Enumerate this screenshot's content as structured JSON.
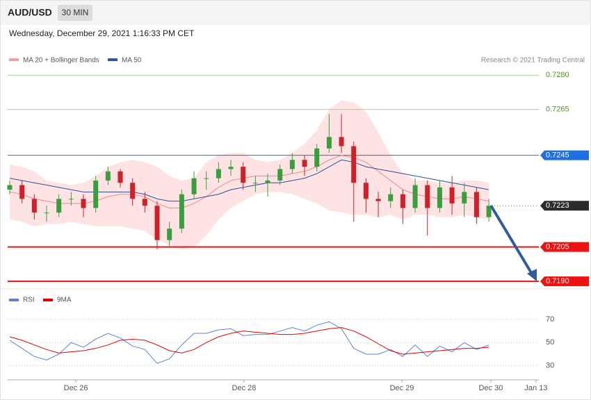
{
  "header": {
    "symbol": "AUD/USD",
    "interval": "30 MIN",
    "timestamp": "Wednesday, December 29, 2021 1:16:33 PM CET",
    "credit": "Research © 2021 Trading Central"
  },
  "chart_data": [
    {
      "type": "candlestick",
      "up_color": "#3a9e3f",
      "down_color": "#d0202a",
      "ohlc": [
        [
          0.723,
          0.7234,
          0.7228,
          0.7232
        ],
        [
          0.7232,
          0.7234,
          0.7224,
          0.7226
        ],
        [
          0.7226,
          0.7228,
          0.7217,
          0.722
        ],
        [
          0.722,
          0.7223,
          0.7216,
          0.722
        ],
        [
          0.722,
          0.7228,
          0.7218,
          0.7226
        ],
        [
          0.7226,
          0.7229,
          0.7223,
          0.7226
        ],
        [
          0.7226,
          0.7228,
          0.7218,
          0.7222
        ],
        [
          0.7222,
          0.7236,
          0.722,
          0.7234
        ],
        [
          0.7234,
          0.724,
          0.7232,
          0.7238
        ],
        [
          0.7238,
          0.7239,
          0.7231,
          0.7233
        ],
        [
          0.7233,
          0.7235,
          0.7223,
          0.7226
        ],
        [
          0.7226,
          0.7229,
          0.722,
          0.7223
        ],
        [
          0.7223,
          0.7225,
          0.7204,
          0.7208
        ],
        [
          0.7208,
          0.7216,
          0.7205,
          0.7213
        ],
        [
          0.7213,
          0.723,
          0.7211,
          0.7228
        ],
        [
          0.7228,
          0.7238,
          0.7226,
          0.7235
        ],
        [
          0.7235,
          0.7238,
          0.723,
          0.7235
        ],
        [
          0.7235,
          0.7242,
          0.7233,
          0.7239
        ],
        [
          0.7239,
          0.7243,
          0.7236,
          0.724
        ],
        [
          0.724,
          0.7242,
          0.723,
          0.7233
        ],
        [
          0.7233,
          0.7236,
          0.7229,
          0.7233
        ],
        [
          0.7233,
          0.7237,
          0.7227,
          0.7234
        ],
        [
          0.7234,
          0.7241,
          0.7232,
          0.7239
        ],
        [
          0.7239,
          0.7246,
          0.7237,
          0.7243
        ],
        [
          0.7243,
          0.7245,
          0.7236,
          0.724
        ],
        [
          0.724,
          0.725,
          0.7238,
          0.7248
        ],
        [
          0.7248,
          0.7263,
          0.7246,
          0.7253
        ],
        [
          0.7253,
          0.7263,
          0.7246,
          0.7249
        ],
        [
          0.7249,
          0.7251,
          0.7216,
          0.7233
        ],
        [
          0.7233,
          0.7235,
          0.722,
          0.7226
        ],
        [
          0.7226,
          0.7229,
          0.7218,
          0.7225
        ],
        [
          0.7225,
          0.7231,
          0.7222,
          0.7228
        ],
        [
          0.7228,
          0.723,
          0.7215,
          0.7222
        ],
        [
          0.7222,
          0.7235,
          0.722,
          0.7232
        ],
        [
          0.7232,
          0.7234,
          0.721,
          0.7222
        ],
        [
          0.7222,
          0.7234,
          0.722,
          0.7231
        ],
        [
          0.7231,
          0.7236,
          0.7219,
          0.7224
        ],
        [
          0.7224,
          0.7233,
          0.7218,
          0.7229
        ],
        [
          0.7229,
          0.7231,
          0.7215,
          0.7218
        ],
        [
          0.7218,
          0.7226,
          0.7216,
          0.7223
        ]
      ],
      "series": [
        {
          "name": "MA 20 + Bollinger Bands",
          "color": "#f08a8a",
          "values": [
            0.7229,
            0.7228,
            0.7226,
            0.7225,
            0.7224,
            0.7224,
            0.7224,
            0.7225,
            0.7227,
            0.7228,
            0.7228,
            0.7227,
            0.7224,
            0.7222,
            0.7222,
            0.7224,
            0.7227,
            0.7231,
            0.7234,
            0.7235,
            0.7236,
            0.7236,
            0.7236,
            0.7237,
            0.7238,
            0.724,
            0.7243,
            0.7245,
            0.7244,
            0.7242,
            0.7238,
            0.7234,
            0.723,
            0.7228,
            0.7227,
            0.7226,
            0.7226,
            0.7227,
            0.7226,
            0.7225
          ]
        },
        {
          "name": "MA 50",
          "color": "#2f4f96",
          "values": [
            0.7235,
            0.7234,
            0.7233,
            0.7232,
            0.7231,
            0.723,
            0.7229,
            0.7229,
            0.7229,
            0.7229,
            0.7229,
            0.7228,
            0.7226,
            0.7225,
            0.7225,
            0.7226,
            0.7227,
            0.7228,
            0.723,
            0.7231,
            0.7232,
            0.7233,
            0.7233,
            0.7234,
            0.7235,
            0.7237,
            0.724,
            0.7243,
            0.7242,
            0.724,
            0.7239,
            0.7238,
            0.7237,
            0.7236,
            0.7235,
            0.7234,
            0.7233,
            0.7232,
            0.7231,
            0.723
          ]
        }
      ],
      "bands": {
        "color": "#fde3e3",
        "upper": [
          0.7241,
          0.724,
          0.7238,
          0.7234,
          0.7233,
          0.7232,
          0.7233,
          0.7236,
          0.724,
          0.7242,
          0.7243,
          0.7242,
          0.724,
          0.7236,
          0.7234,
          0.7235,
          0.7242,
          0.7245,
          0.7246,
          0.7246,
          0.7243,
          0.7242,
          0.7243,
          0.7246,
          0.725,
          0.7256,
          0.7265,
          0.7269,
          0.7268,
          0.7264,
          0.7255,
          0.7245,
          0.7237,
          0.7234,
          0.7234,
          0.7233,
          0.7233,
          0.7234,
          0.7234,
          0.7233
        ],
        "lower": [
          0.7217,
          0.7216,
          0.7214,
          0.7215,
          0.7215,
          0.7216,
          0.7215,
          0.7214,
          0.7214,
          0.7214,
          0.7213,
          0.7212,
          0.7208,
          0.7206,
          0.7204,
          0.7205,
          0.721,
          0.7217,
          0.7222,
          0.7225,
          0.7228,
          0.7229,
          0.7229,
          0.7228,
          0.7226,
          0.7224,
          0.7221,
          0.722,
          0.7219,
          0.7219,
          0.7218,
          0.7219,
          0.7217,
          0.7219,
          0.7219,
          0.7218,
          0.7218,
          0.7219,
          0.7218,
          0.7217
        ]
      },
      "levels": [
        {
          "value": 0.728,
          "label": "0.7280",
          "color": "#a9d18e",
          "text_color": "#4e9a1c",
          "label_bg": null,
          "dotted": false
        },
        {
          "value": 0.7265,
          "label": "0.7265",
          "color": "#a9d18e",
          "text_color": "#4e9a1c",
          "label_bg": null,
          "dotted": false
        },
        {
          "value": 0.7245,
          "label": "0.7245",
          "color": "#2f6bc4",
          "text_color": "#ffffff",
          "label_bg": "#1f6fe0",
          "dotted": false
        },
        {
          "value": 0.7223,
          "label": "0.7223",
          "color": "#555555",
          "text_color": "#ffffff",
          "label_bg": "#2b2b2b",
          "dotted": true
        },
        {
          "value": 0.7205,
          "label": "0.7205",
          "color": "#ee1111",
          "text_color": "#ffffff",
          "label_bg": "#ee1111",
          "dotted": false
        },
        {
          "value": 0.719,
          "label": "0.7190",
          "color": "#ee1111",
          "text_color": "#ffffff",
          "label_bg": "#ee1111",
          "dotted": false
        }
      ],
      "ylim": [
        0.7187,
        0.7284
      ],
      "xlim": [
        -0.17,
        43.07
      ],
      "xticks": [
        {
          "value": 5.38,
          "label": "Dec 26"
        },
        {
          "value": 19.07,
          "label": "Dec 28"
        },
        {
          "value": 31.92,
          "label": "Dec 29"
        },
        {
          "value": 39.16,
          "label": "Dec 30"
        },
        {
          "value": 42.84,
          "label": "Jan 13"
        }
      ]
    },
    {
      "type": "line",
      "series": [
        {
          "name": "RSI",
          "color": "#5b80d8",
          "values": [
            52,
            45,
            38,
            35,
            40,
            50,
            46,
            53,
            58,
            54,
            47,
            44,
            32,
            36,
            48,
            58,
            58,
            61,
            62,
            56,
            57,
            57,
            60,
            63,
            60,
            65,
            68,
            62,
            45,
            40,
            40,
            44,
            38,
            48,
            38,
            47,
            42,
            50,
            44,
            48
          ]
        },
        {
          "name": "9MA",
          "color": "#e00000",
          "values": [
            55,
            52,
            48,
            44,
            41,
            42,
            43,
            45,
            48,
            52,
            53,
            52,
            48,
            43,
            41,
            44,
            50,
            55,
            58,
            60,
            59,
            58,
            57,
            57,
            58,
            60,
            62,
            63,
            60,
            55,
            49,
            43,
            40,
            41,
            42,
            43,
            44,
            45,
            45,
            46
          ]
        }
      ],
      "ylim": [
        22,
        82
      ],
      "yticks": [
        30,
        50,
        70
      ],
      "grid": true
    }
  ]
}
